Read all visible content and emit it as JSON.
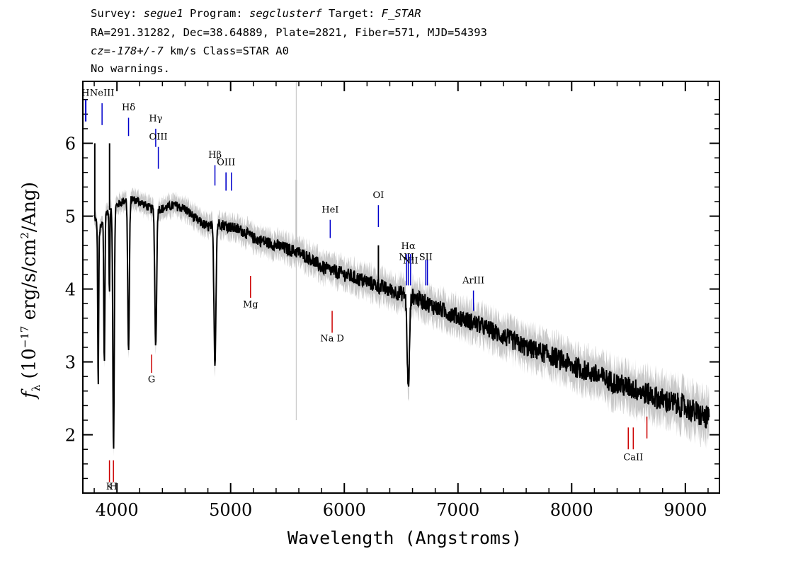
{
  "header": {
    "line1": {
      "p1": "Survey: ",
      "survey": "segue1",
      "p2": " Program: ",
      "program": "segclusterf",
      "p3": " Target: ",
      "target": "F_STAR"
    },
    "line2": "RA=291.31282, Dec=38.64889, Plate=2821, Fiber=571, MJD=54393",
    "line3": {
      "cz": "cz=-178+/-7",
      "rest": " km/s Class=STAR A0"
    },
    "line4": "No warnings."
  },
  "chart_data": {
    "type": "line",
    "xlabel": "Wavelength (Angstroms)",
    "ylabel": {
      "sym": "f",
      "sub": "λ",
      "pre": " (10",
      "exp": "−17",
      "mid": " erg/s/cm",
      "exp2": "2",
      "post": "/Ang)"
    },
    "xlim": [
      3700,
      9300
    ],
    "ylim": [
      1.2,
      6.85
    ],
    "xticks": [
      4000,
      5000,
      6000,
      7000,
      8000,
      9000
    ],
    "yticks": [
      2,
      3,
      4,
      5,
      6
    ],
    "continuum": [
      [
        3800,
        5.0
      ],
      [
        3850,
        4.8
      ],
      [
        3900,
        5.05
      ],
      [
        3950,
        5.1
      ],
      [
        4000,
        5.15
      ],
      [
        4050,
        5.2
      ],
      [
        4100,
        5.25
      ],
      [
        4200,
        5.2
      ],
      [
        4300,
        5.1
      ],
      [
        4400,
        5.1
      ],
      [
        4500,
        5.15
      ],
      [
        4600,
        5.1
      ],
      [
        4700,
        4.95
      ],
      [
        4800,
        4.85
      ],
      [
        4900,
        4.9
      ],
      [
        5000,
        4.85
      ],
      [
        5100,
        4.8
      ],
      [
        5200,
        4.7
      ],
      [
        5300,
        4.65
      ],
      [
        5400,
        4.6
      ],
      [
        5500,
        4.55
      ],
      [
        5600,
        4.5
      ],
      [
        5700,
        4.42
      ],
      [
        5800,
        4.3
      ],
      [
        5900,
        4.25
      ],
      [
        6000,
        4.2
      ],
      [
        6200,
        4.1
      ],
      [
        6400,
        3.98
      ],
      [
        6600,
        3.9
      ],
      [
        6800,
        3.75
      ],
      [
        7000,
        3.62
      ],
      [
        7200,
        3.5
      ],
      [
        7400,
        3.35
      ],
      [
        7600,
        3.2
      ],
      [
        7800,
        3.1
      ],
      [
        8000,
        2.95
      ],
      [
        8200,
        2.83
      ],
      [
        8400,
        2.7
      ],
      [
        8600,
        2.6
      ],
      [
        8800,
        2.48
      ],
      [
        9000,
        2.38
      ],
      [
        9200,
        2.22
      ]
    ],
    "absorption": [
      {
        "wave": 3835,
        "depth": 2.2,
        "width": 6
      },
      {
        "wave": 3889,
        "depth": 2.0,
        "width": 7
      },
      {
        "wave": 3934,
        "depth": 1.2,
        "width": 5
      },
      {
        "wave": 3970,
        "depth": 3.3,
        "width": 9
      },
      {
        "wave": 4102,
        "depth": 2.1,
        "width": 10
      },
      {
        "wave": 4341,
        "depth": 1.9,
        "width": 11
      },
      {
        "wave": 4862,
        "depth": 1.9,
        "width": 12
      },
      {
        "wave": 6563,
        "depth": 1.3,
        "width": 14
      }
    ],
    "spikes": [
      {
        "wave": 3805,
        "top": 6.0
      },
      {
        "wave": 3935,
        "top": 6.0
      },
      {
        "wave": 5577,
        "top": 5.5
      },
      {
        "wave": 6300,
        "top": 4.6
      }
    ],
    "line_labels": [
      {
        "text": "H",
        "wave": 3724,
        "color": "blue",
        "label_y": 6.65,
        "tick": [
          6.6,
          6.3
        ],
        "side": "top"
      },
      {
        "text": "NeIII",
        "wave": 3869,
        "color": "blue",
        "label_y": 6.65,
        "tick": [
          6.55,
          6.25
        ],
        "side": "top"
      },
      {
        "text": "Hδ",
        "wave": 4102,
        "color": "blue",
        "label_y": 6.45,
        "tick": [
          6.35,
          6.1
        ],
        "side": "top"
      },
      {
        "text": "Hγ",
        "wave": 4341,
        "color": "blue",
        "label_y": 6.3,
        "tick": [
          6.2,
          5.95
        ],
        "side": "top"
      },
      {
        "text": "OIII",
        "wave": 4364,
        "color": "blue",
        "label_y": 6.05,
        "tick": [
          5.95,
          5.65
        ],
        "side": "top"
      },
      {
        "text": "Hβ",
        "wave": 4862,
        "color": "blue",
        "label_y": 5.8,
        "tick": [
          5.7,
          5.42
        ],
        "side": "top"
      },
      {
        "text": "OIII",
        "wave": 4960,
        "color": "blue",
        "label_y": 5.7,
        "tick": [
          5.6,
          5.35
        ],
        "side": "top"
      },
      {
        "text": "HeI",
        "wave": 5876,
        "color": "blue",
        "label_y": 5.05,
        "tick": [
          4.95,
          4.7
        ],
        "side": "top"
      },
      {
        "text": "OI",
        "wave": 6300,
        "color": "blue",
        "label_y": 5.25,
        "tick": [
          5.15,
          4.85
        ],
        "side": "top"
      },
      {
        "text": "NII",
        "wave": 6548,
        "color": "blue",
        "label_y": 4.4,
        "tick": [
          4.48,
          4.05
        ],
        "side": "top"
      },
      {
        "text": "Hα",
        "wave": 6563,
        "color": "blue",
        "label_y": 4.55,
        "tick": [
          4.48,
          4.05
        ],
        "side": "top"
      },
      {
        "text": "NII",
        "wave": 6583,
        "color": "blue",
        "label_y": 4.35,
        "tick": [
          4.48,
          4.05
        ],
        "side": "top"
      },
      {
        "text": "SII",
        "wave": 6717,
        "color": "blue",
        "label_y": 4.4,
        "tick": [
          4.4,
          4.05
        ],
        "side": "top"
      },
      {
        "text": "ArIII",
        "wave": 7136,
        "color": "blue",
        "label_y": 4.08,
        "tick": [
          3.98,
          3.7
        ],
        "side": "top"
      },
      {
        "text": "G",
        "wave": 4305,
        "color": "red",
        "label_y": 2.72,
        "tick": [
          2.85,
          3.1
        ],
        "side": "bottom"
      },
      {
        "text": "Mg",
        "wave": 5175,
        "color": "red",
        "label_y": 3.75,
        "tick": [
          3.88,
          4.18
        ],
        "side": "bottom"
      },
      {
        "text": "Na D",
        "wave": 5893,
        "color": "red",
        "label_y": 3.28,
        "tick": [
          3.4,
          3.7
        ],
        "side": "bottom"
      },
      {
        "text": "K",
        "wave": 3934,
        "color": "red",
        "label_y": 1.25,
        "tick": [
          1.35,
          1.65
        ],
        "side": "bottom"
      },
      {
        "text": "H",
        "wave": 3969,
        "color": "red",
        "label_y": 1.25,
        "tick": [
          1.35,
          1.65
        ],
        "side": "bottom"
      },
      {
        "text": "CaII",
        "wave": 8542,
        "color": "red",
        "label_y": 1.65,
        "tick": [
          1.8,
          2.1
        ],
        "side": "bottom"
      }
    ],
    "extra_ticks": [
      {
        "wave": 3727,
        "color": "blue",
        "tick": [
          6.6,
          6.3
        ]
      },
      {
        "wave": 4959,
        "color": "blue",
        "tick": [
          5.6,
          5.35
        ]
      },
      {
        "wave": 5007,
        "color": "blue",
        "tick": [
          5.6,
          5.35
        ]
      },
      {
        "wave": 6731,
        "color": "blue",
        "tick": [
          4.4,
          4.05
        ]
      },
      {
        "wave": 8498,
        "color": "red",
        "tick": [
          1.8,
          2.1
        ]
      },
      {
        "wave": 8662,
        "color": "red",
        "tick": [
          1.95,
          2.25
        ]
      }
    ]
  }
}
